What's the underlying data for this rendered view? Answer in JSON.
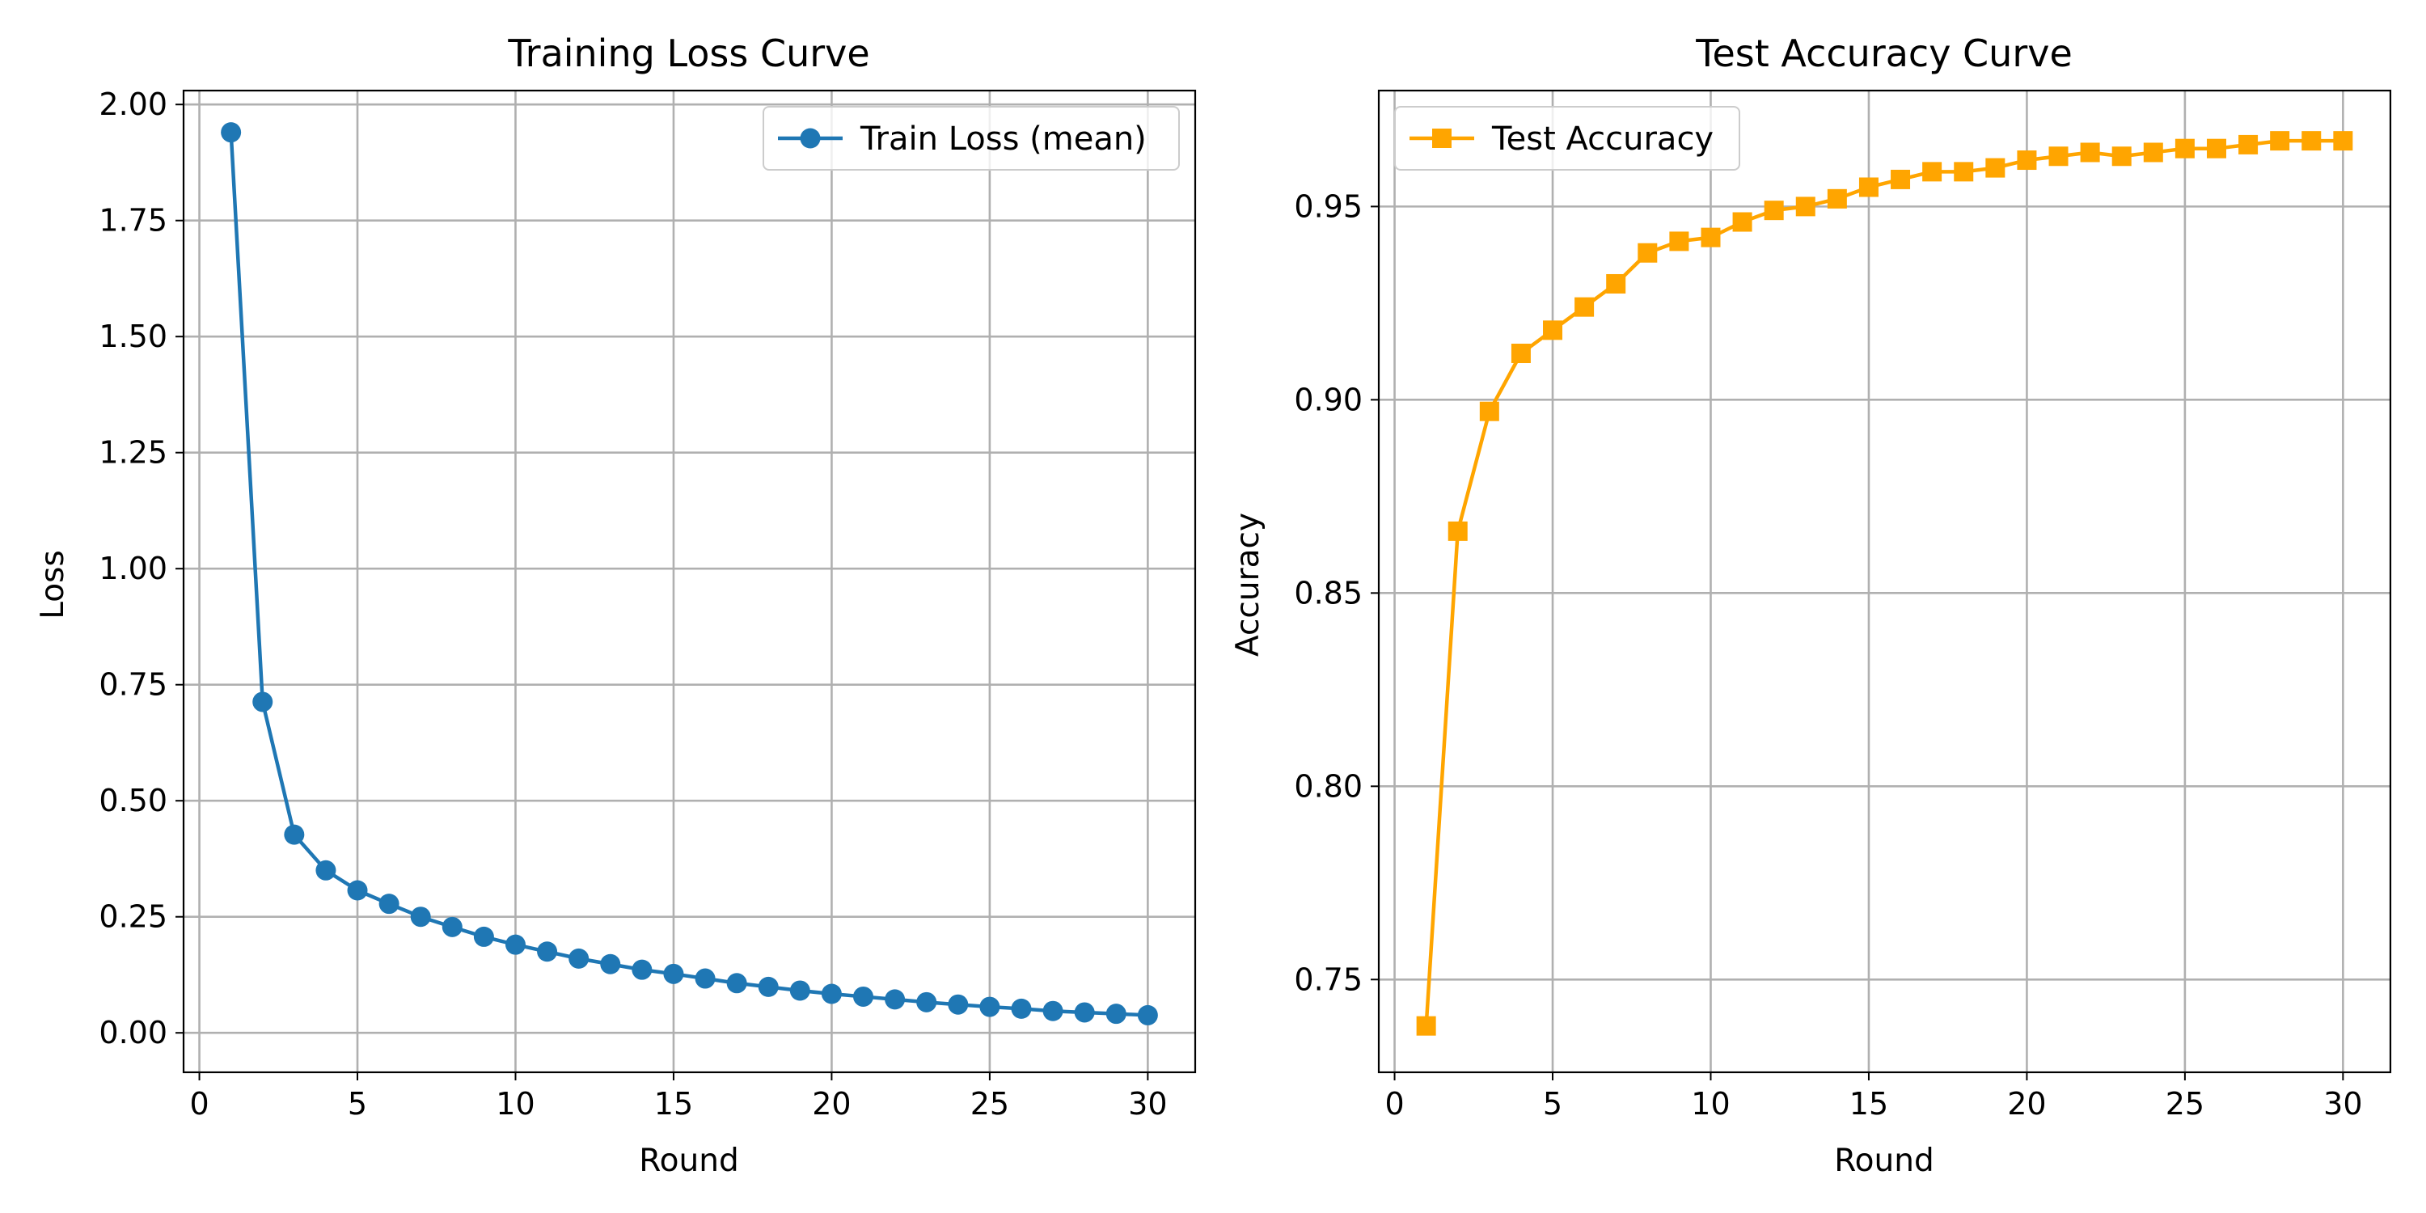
{
  "chart_data": [
    {
      "type": "line",
      "title": "Training Loss Curve",
      "xlabel": "Round",
      "ylabel": "Loss",
      "xlim": [
        -0.5,
        31.5
      ],
      "ylim": [
        -0.085,
        2.03
      ],
      "x_ticks": [
        "0",
        "5",
        "10",
        "15",
        "20",
        "25",
        "30"
      ],
      "x_tick_values": [
        0,
        5,
        10,
        15,
        20,
        25,
        30
      ],
      "y_ticks": [
        "0.00",
        "0.25",
        "0.50",
        "0.75",
        "1.00",
        "1.25",
        "1.50",
        "1.75",
        "2.00"
      ],
      "y_tick_values": [
        0,
        0.25,
        0.5,
        0.75,
        1.0,
        1.25,
        1.5,
        1.75,
        2.0
      ],
      "grid": true,
      "legend_position": "top-right",
      "series": [
        {
          "name": "Train Loss (mean)",
          "color": "#1f77b4",
          "marker": "circle",
          "x": [
            1,
            2,
            3,
            4,
            5,
            6,
            7,
            8,
            9,
            10,
            11,
            12,
            13,
            14,
            15,
            16,
            17,
            18,
            19,
            20,
            21,
            22,
            23,
            24,
            25,
            26,
            27,
            28,
            29,
            30
          ],
          "values": [
            1.94,
            0.713,
            0.427,
            0.35,
            0.307,
            0.278,
            0.25,
            0.228,
            0.207,
            0.19,
            0.175,
            0.16,
            0.148,
            0.136,
            0.127,
            0.117,
            0.107,
            0.099,
            0.091,
            0.084,
            0.078,
            0.072,
            0.066,
            0.061,
            0.056,
            0.052,
            0.047,
            0.044,
            0.041,
            0.038
          ]
        }
      ]
    },
    {
      "type": "line",
      "title": "Test Accuracy Curve",
      "xlabel": "Round",
      "ylabel": "Accuracy",
      "xlim": [
        -0.5,
        31.5
      ],
      "ylim": [
        0.726,
        0.98
      ],
      "x_ticks": [
        "0",
        "5",
        "10",
        "15",
        "20",
        "25",
        "30"
      ],
      "x_tick_values": [
        0,
        5,
        10,
        15,
        20,
        25,
        30
      ],
      "y_ticks": [
        "0.75",
        "0.80",
        "0.85",
        "0.90",
        "0.95"
      ],
      "y_tick_values": [
        0.75,
        0.8,
        0.85,
        0.9,
        0.95
      ],
      "grid": true,
      "legend_position": "top-left",
      "series": [
        {
          "name": "Test Accuracy",
          "color": "#ffa500",
          "marker": "square",
          "x": [
            1,
            2,
            3,
            4,
            5,
            6,
            7,
            8,
            9,
            10,
            11,
            12,
            13,
            14,
            15,
            16,
            17,
            18,
            19,
            20,
            21,
            22,
            23,
            24,
            25,
            26,
            27,
            28,
            29,
            30
          ],
          "values": [
            0.738,
            0.866,
            0.897,
            0.912,
            0.918,
            0.924,
            0.93,
            0.938,
            0.941,
            0.942,
            0.946,
            0.949,
            0.95,
            0.952,
            0.955,
            0.957,
            0.959,
            0.959,
            0.96,
            0.962,
            0.963,
            0.964,
            0.963,
            0.964,
            0.965,
            0.965,
            0.966,
            0.967,
            0.967,
            0.967
          ]
        }
      ]
    }
  ]
}
